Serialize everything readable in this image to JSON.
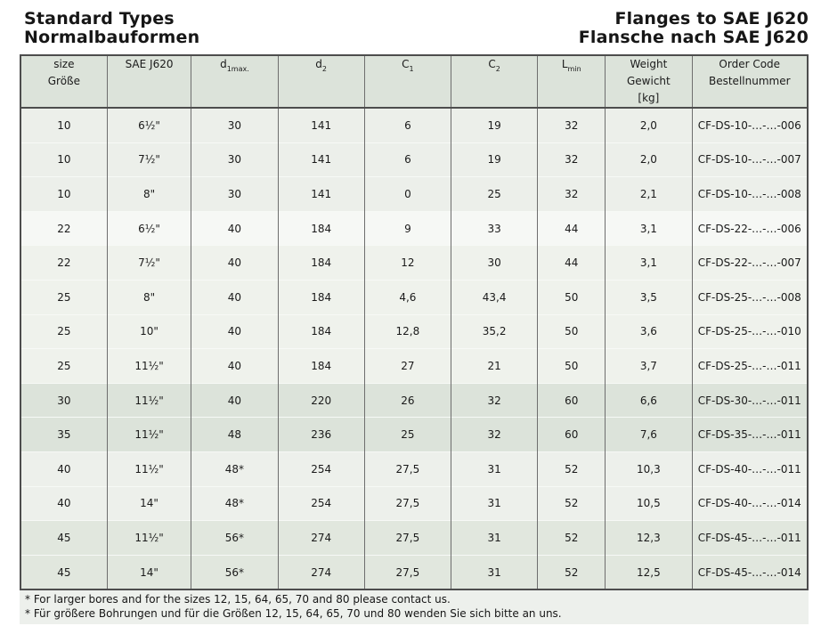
{
  "header": {
    "title_left": [
      "Standard Types",
      "Normalbauformen"
    ],
    "title_right": [
      "Flanges to SAE J620",
      "Flansche nach SAE J620"
    ]
  },
  "colors": {
    "header_bg": "#dce3da",
    "note_band_bg": "#edf0ec",
    "border_dark": "#4d4d4d",
    "border_col": "#6e6e6e",
    "row_separator": "#f7f9f6"
  },
  "table": {
    "columns": [
      {
        "id": "size",
        "width": 11.0,
        "label_lines": [
          "size",
          "Größe"
        ]
      },
      {
        "id": "sae",
        "width": 10.7,
        "label_lines": [
          "SAE J620"
        ]
      },
      {
        "id": "d1max",
        "width": 11.0,
        "base": "d",
        "sub": "1max."
      },
      {
        "id": "d2",
        "width": 11.0,
        "base": "d",
        "sub": "2"
      },
      {
        "id": "c1",
        "width": 11.0,
        "base": "C",
        "sub": "1"
      },
      {
        "id": "c2",
        "width": 11.0,
        "base": "C",
        "sub": "2"
      },
      {
        "id": "lmin",
        "width": 8.6,
        "base": "L",
        "sub": "min"
      },
      {
        "id": "weight",
        "width": 11.0,
        "label_lines": [
          "Weight",
          "Gewicht",
          "[kg]"
        ]
      },
      {
        "id": "order",
        "width": 14.7,
        "label_lines": [
          "Order Code",
          "Bestellnummer"
        ]
      }
    ],
    "rows": [
      {
        "bg": "#ecefea",
        "cells": [
          "10",
          "6½\"",
          "30",
          "141",
          "6",
          "19",
          "32",
          "2,0",
          "CF-DS-10-…-…-006"
        ]
      },
      {
        "bg": "#ecefea",
        "cells": [
          "10",
          "7½\"",
          "30",
          "141",
          "6",
          "19",
          "32",
          "2,0",
          "CF-DS-10-…-…-007"
        ]
      },
      {
        "bg": "#ecefea",
        "cells": [
          "10",
          "8\"",
          "30",
          "141",
          "0",
          "25",
          "32",
          "2,1",
          "CF-DS-10-…-…-008"
        ]
      },
      {
        "bg": "#f6f8f5",
        "cells": [
          "22",
          "6½\"",
          "40",
          "184",
          "9",
          "33",
          "44",
          "3,1",
          "CF-DS-22-…-…-006"
        ]
      },
      {
        "bg": "#eff2ec",
        "cells": [
          "22",
          "7½\"",
          "40",
          "184",
          "12",
          "30",
          "44",
          "3,1",
          "CF-DS-22-…-…-007"
        ]
      },
      {
        "bg": "#eff2ec",
        "cells": [
          "25",
          "8\"",
          "40",
          "184",
          "4,6",
          "43,4",
          "50",
          "3,5",
          "CF-DS-25-…-…-008"
        ]
      },
      {
        "bg": "#eff2ec",
        "cells": [
          "25",
          "10\"",
          "40",
          "184",
          "12,8",
          "35,2",
          "50",
          "3,6",
          "CF-DS-25-…-…-010"
        ]
      },
      {
        "bg": "#eff2ec",
        "cells": [
          "25",
          "11½\"",
          "40",
          "184",
          "27",
          "21",
          "50",
          "3,7",
          "CF-DS-25-…-…-011"
        ]
      },
      {
        "bg": "#dce3da",
        "cells": [
          "30",
          "11½\"",
          "40",
          "220",
          "26",
          "32",
          "60",
          "6,6",
          "CF-DS-30-…-…-011"
        ]
      },
      {
        "bg": "#dce3da",
        "cells": [
          "35",
          "11½\"",
          "48",
          "236",
          "25",
          "32",
          "60",
          "7,6",
          "CF-DS-35-…-…-011"
        ]
      },
      {
        "bg": "#edf0eb",
        "cells": [
          "40",
          "11½\"",
          "48*",
          "254",
          "27,5",
          "31",
          "52",
          "10,3",
          "CF-DS-40-…-…-011"
        ]
      },
      {
        "bg": "#edf0eb",
        "cells": [
          "40",
          "14\"",
          "48*",
          "254",
          "27,5",
          "31",
          "52",
          "10,5",
          "CF-DS-40-…-…-014"
        ]
      },
      {
        "bg": "#e1e7de",
        "cells": [
          "45",
          "11½\"",
          "56*",
          "274",
          "27,5",
          "31",
          "52",
          "12,3",
          "CF-DS-45-…-…-011"
        ]
      },
      {
        "bg": "#e1e7de",
        "cells": [
          "45",
          "14\"",
          "56*",
          "274",
          "27,5",
          "31",
          "52",
          "12,5",
          "CF-DS-45-…-…-014"
        ]
      }
    ]
  },
  "footnotes": [
    "* For larger bores and for the sizes 12, 15, 64, 65, 70 and 80 please contact us.",
    "* Für größere Bohrungen und für die Größen 12, 15, 64, 65, 70 und 80 wenden Sie sich bitte an uns."
  ]
}
